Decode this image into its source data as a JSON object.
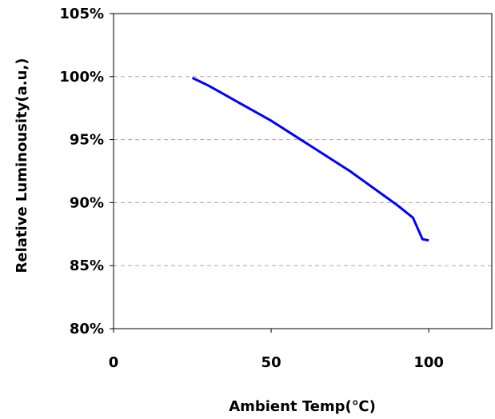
{
  "chart_data": {
    "type": "line",
    "title": "",
    "xlabel": "Ambient Temp(℃)",
    "ylabel": "Relative Luminousity(a.u,)",
    "xlim": [
      0,
      120
    ],
    "ylim": [
      80,
      105
    ],
    "x_ticks": [
      0,
      50,
      100
    ],
    "y_ticks": [
      {
        "value": 80,
        "label": "80%"
      },
      {
        "value": 85,
        "label": "85%"
      },
      {
        "value": 90,
        "label": "90%"
      },
      {
        "value": 95,
        "label": "95%"
      },
      {
        "value": 100,
        "label": "100%"
      },
      {
        "value": 105,
        "label": "105%"
      }
    ],
    "grid": "horizontal-dashed",
    "legend": "none",
    "series": [
      {
        "color": "#0000ff",
        "points": [
          [
            25,
            99.9
          ],
          [
            30,
            99.3
          ],
          [
            35,
            98.6
          ],
          [
            40,
            97.9
          ],
          [
            45,
            97.2
          ],
          [
            50,
            96.5
          ],
          [
            55,
            95.7
          ],
          [
            60,
            94.9
          ],
          [
            65,
            94.1
          ],
          [
            70,
            93.3
          ],
          [
            75,
            92.5
          ],
          [
            80,
            91.6
          ],
          [
            85,
            90.7
          ],
          [
            90,
            89.8
          ],
          [
            95,
            88.8
          ],
          [
            98,
            87.1
          ],
          [
            100,
            87.0
          ]
        ]
      }
    ]
  }
}
